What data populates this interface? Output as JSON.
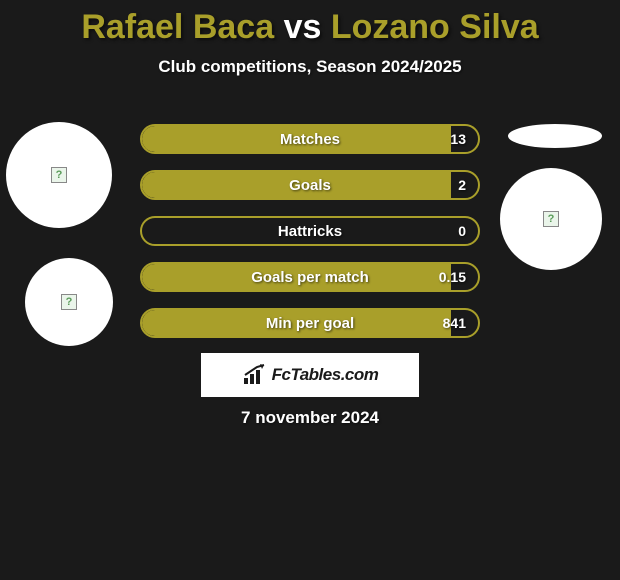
{
  "header": {
    "player1": "Rafael Baca",
    "vs": "vs",
    "player2": "Lozano Silva",
    "subtitle": "Club competitions, Season 2024/2025"
  },
  "colors": {
    "accent": "#a99f2a",
    "background": "#1a1a1a",
    "text": "#ffffff"
  },
  "stats": [
    {
      "label": "Matches",
      "value": "13",
      "fill_pct": 92,
      "border_color": "#a99f2a",
      "fill_color": "#a99f2a"
    },
    {
      "label": "Goals",
      "value": "2",
      "fill_pct": 92,
      "border_color": "#a99f2a",
      "fill_color": "#a99f2a"
    },
    {
      "label": "Hattricks",
      "value": "0",
      "fill_pct": 0,
      "border_color": "#a99f2a",
      "fill_color": "#a99f2a"
    },
    {
      "label": "Goals per match",
      "value": "0.15",
      "fill_pct": 92,
      "border_color": "#a99f2a",
      "fill_color": "#a99f2a"
    },
    {
      "label": "Min per goal",
      "value": "841",
      "fill_pct": 92,
      "border_color": "#a99f2a",
      "fill_color": "#a99f2a"
    }
  ],
  "brand": {
    "text": "FcTables.com"
  },
  "footer": {
    "date": "7 november 2024"
  }
}
